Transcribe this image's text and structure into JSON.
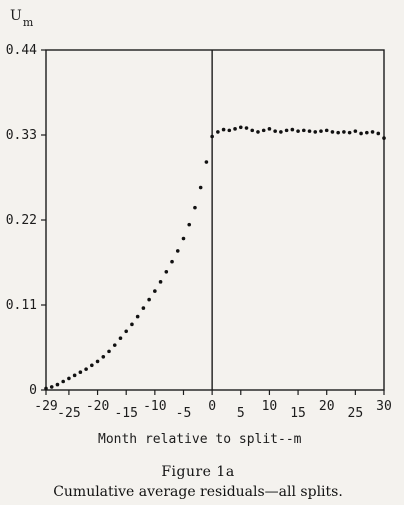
{
  "figure": {
    "label": "Figure 1a",
    "caption": "Cumulative average residuals—all splits."
  },
  "chart_data": {
    "type": "scatter",
    "ylabel": "U",
    "ylabel_sub": "m",
    "xlabel": "Month relative to split--m",
    "xlim": [
      -29,
      30
    ],
    "ylim": [
      0,
      0.44
    ],
    "yticks": [
      0,
      0.11,
      0.22,
      0.33,
      0.44
    ],
    "ytick_labels": [
      "0",
      "0.11",
      "0.22",
      "0.33",
      "0.44"
    ],
    "xticks": [
      -29,
      -25,
      -20,
      -15,
      -10,
      -5,
      0,
      5,
      10,
      15,
      20,
      25,
      30
    ],
    "xtick_labels": [
      "-29",
      "-25",
      "-20",
      "-15",
      "-10",
      "-5",
      "0",
      "5",
      "10",
      "15",
      "20",
      "25",
      "30"
    ],
    "vertical_line_at": 0,
    "grid": false,
    "series": [
      {
        "x": [
          -29,
          -28,
          -27,
          -26,
          -25,
          -24,
          -23,
          -22,
          -21,
          -20,
          -19,
          -18,
          -17,
          -16,
          -15,
          -14,
          -13,
          -12,
          -11,
          -10,
          -9,
          -8,
          -7,
          -6,
          -5,
          -4,
          -3,
          -2,
          -1,
          0,
          1,
          2,
          3,
          4,
          5,
          6,
          7,
          8,
          9,
          10,
          11,
          12,
          13,
          14,
          15,
          16,
          17,
          18,
          19,
          20,
          21,
          22,
          23,
          24,
          25,
          26,
          27,
          28,
          29,
          30
        ],
        "y": [
          0.002,
          0.004,
          0.007,
          0.011,
          0.015,
          0.019,
          0.023,
          0.027,
          0.032,
          0.037,
          0.043,
          0.05,
          0.058,
          0.067,
          0.076,
          0.085,
          0.095,
          0.106,
          0.117,
          0.128,
          0.14,
          0.153,
          0.166,
          0.18,
          0.196,
          0.214,
          0.236,
          0.262,
          0.295,
          0.328,
          0.334,
          0.337,
          0.336,
          0.338,
          0.34,
          0.339,
          0.336,
          0.334,
          0.336,
          0.338,
          0.335,
          0.334,
          0.336,
          0.337,
          0.335,
          0.336,
          0.335,
          0.334,
          0.335,
          0.336,
          0.334,
          0.333,
          0.334,
          0.333,
          0.335,
          0.332,
          0.333,
          0.334,
          0.332,
          0.326
        ]
      }
    ]
  }
}
